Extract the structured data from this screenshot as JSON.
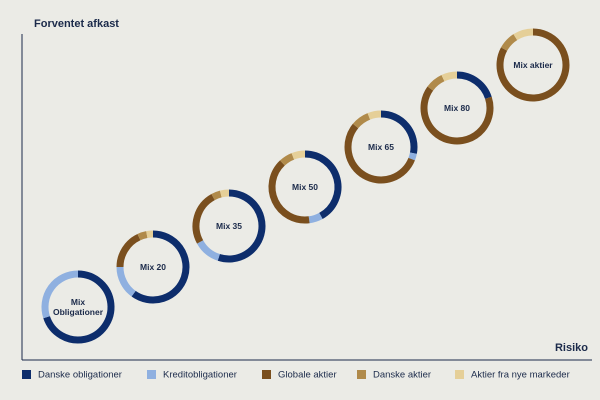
{
  "chart_data": {
    "type": "donut",
    "y_label": "Forventet afkast",
    "x_label": "Risiko",
    "categories": [
      "Mix Obligationer",
      "Mix 20",
      "Mix 35",
      "Mix 50",
      "Mix 65",
      "Mix 80",
      "Mix aktier"
    ],
    "series": [
      {
        "name": "Danske obligationer",
        "color": "#0d2d6c",
        "values": [
          70,
          60,
          55,
          42,
          28,
          20,
          0
        ]
      },
      {
        "name": "Kreditobligationer",
        "color": "#8fb0e0",
        "values": [
          30,
          15,
          12,
          6,
          3,
          0,
          0
        ]
      },
      {
        "name": "Globale aktier",
        "color": "#7a4f1e",
        "values": [
          0,
          18,
          25,
          40,
          55,
          65,
          83
        ]
      },
      {
        "name": "Danske aktier",
        "color": "#b08a4a",
        "values": [
          0,
          4,
          4,
          6,
          8,
          8,
          8
        ]
      },
      {
        "name": "Aktier fra nye markeder",
        "color": "#e5cf98",
        "values": [
          0,
          3,
          4,
          6,
          6,
          7,
          9
        ]
      }
    ]
  }
}
